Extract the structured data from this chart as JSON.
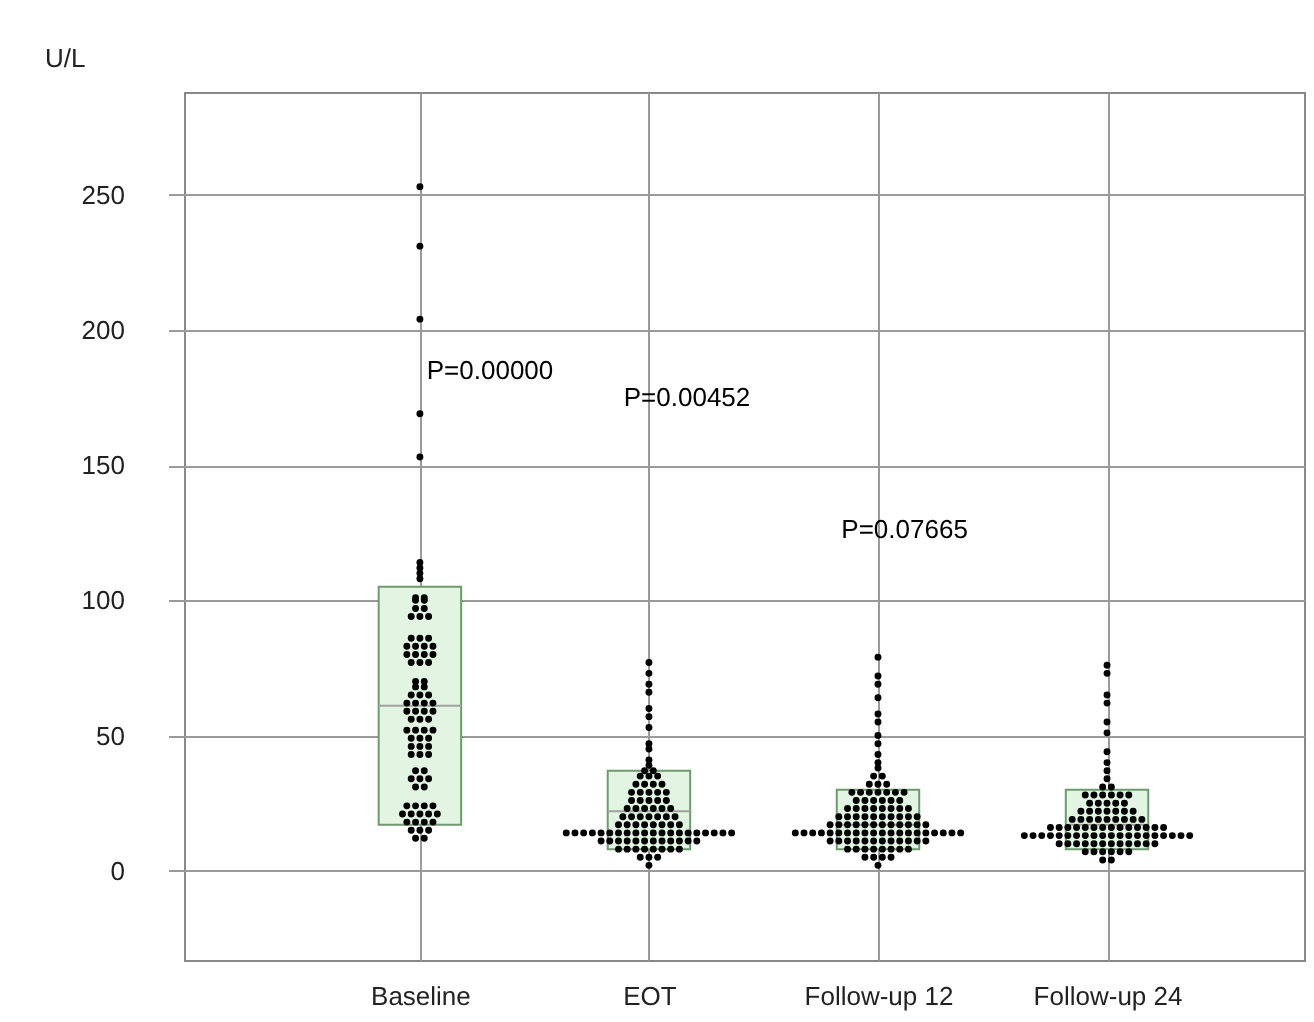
{
  "chart_data": {
    "type": "box",
    "ylabel": "U/L",
    "categories": [
      "Baseline",
      "EOT",
      "Follow-up 12",
      "Follow-up 24"
    ],
    "ylim": [
      -33,
      288
    ],
    "yticks": [
      0,
      50,
      100,
      150,
      200,
      250
    ],
    "grid": true,
    "annotations": [
      "P=0.00000",
      "P=0.00452",
      "P=0.07665"
    ],
    "series": [
      {
        "color": "#e2f5e2",
        "boxes": [
          {
            "low": 17,
            "q1": 17,
            "median": 61,
            "q3": 105,
            "high": 105
          },
          {
            "low": 8,
            "q1": 8,
            "median": 22,
            "q3": 37,
            "high": 37
          },
          {
            "low": 8,
            "q1": 8,
            "median": 17,
            "q3": 30,
            "high": 30
          },
          {
            "low": 8,
            "q1": 8,
            "median": 17,
            "q3": 30,
            "high": 30
          }
        ]
      },
      {
        "type": "scatter",
        "color": "#000000",
        "marker": "circle",
        "x": [
          "Baseline",
          "Baseline",
          "Baseline",
          "Baseline",
          "Baseline",
          "Baseline",
          "Baseline",
          "Baseline",
          "Baseline",
          "Baseline",
          "Baseline",
          "Baseline",
          "Baseline",
          "Baseline",
          "Baseline",
          "Baseline",
          "Baseline",
          "Baseline",
          "Baseline",
          "Baseline",
          "Baseline",
          "Baseline",
          "Baseline",
          "Baseline",
          "Baseline",
          "Baseline",
          "Baseline",
          "Baseline",
          "Baseline",
          "Baseline",
          "Baseline",
          "Baseline",
          "Baseline",
          "Baseline",
          "Baseline",
          "Baseline",
          "Baseline",
          "Baseline",
          "Baseline",
          "Baseline",
          "Baseline",
          "Baseline",
          "Baseline",
          "Baseline",
          "Baseline",
          "Baseline",
          "Baseline",
          "Baseline",
          "Baseline",
          "Baseline",
          "Baseline",
          "Baseline",
          "Baseline",
          "Baseline",
          "Baseline",
          "Baseline",
          "Baseline",
          "Baseline",
          "Baseline",
          "Baseline",
          "Baseline",
          "Baseline",
          "Baseline",
          "Baseline",
          "Baseline",
          "Baseline",
          "Baseline",
          "Baseline",
          "Baseline",
          "Baseline",
          "Baseline",
          "Baseline",
          "Baseline",
          "Baseline",
          "Baseline",
          "Baseline",
          "Baseline",
          "Baseline",
          "Baseline",
          "Baseline",
          "Baseline",
          "Baseline",
          "Baseline",
          "Baseline",
          "Baseline",
          "Baseline",
          "Baseline",
          "Baseline"
        ],
        "values": [
          253,
          231,
          204,
          169,
          153,
          114,
          112,
          110,
          108,
          101,
          101,
          100,
          100,
          97,
          97,
          94,
          94,
          94,
          86,
          86,
          86,
          83,
          83,
          83,
          83,
          80,
          80,
          80,
          80,
          77,
          77,
          77,
          70,
          70,
          68,
          68,
          65,
          65,
          65,
          62,
          62,
          62,
          62,
          59,
          59,
          59,
          59,
          56,
          56,
          56,
          52,
          52,
          52,
          52,
          49,
          49,
          49,
          46,
          46,
          46,
          43,
          43,
          43,
          37,
          37,
          34,
          34,
          34,
          31,
          31,
          24,
          24,
          24,
          24,
          21,
          21,
          21,
          21,
          21,
          18,
          18,
          18,
          18,
          15,
          15,
          15,
          12,
          12
        ]
      },
      {
        "type": "scatter",
        "color": "#000000",
        "marker": "circle",
        "x": [
          "EOT",
          "EOT",
          "EOT",
          "EOT",
          "EOT",
          "EOT",
          "EOT",
          "EOT",
          "EOT",
          "EOT",
          "EOT",
          "EOT",
          "EOT",
          "EOT",
          "EOT",
          "EOT",
          "EOT",
          "EOT",
          "EOT",
          "EOT",
          "EOT",
          "EOT",
          "EOT",
          "EOT",
          "EOT",
          "EOT",
          "EOT",
          "EOT",
          "EOT",
          "EOT",
          "EOT",
          "EOT",
          "EOT",
          "EOT",
          "EOT",
          "EOT",
          "EOT",
          "EOT",
          "EOT",
          "EOT",
          "EOT",
          "EOT",
          "EOT",
          "EOT",
          "EOT",
          "EOT",
          "EOT",
          "EOT",
          "EOT",
          "EOT",
          "EOT",
          "EOT",
          "EOT",
          "EOT",
          "EOT",
          "EOT",
          "EOT",
          "EOT",
          "EOT",
          "EOT",
          "EOT",
          "EOT",
          "EOT",
          "EOT",
          "EOT",
          "EOT",
          "EOT",
          "EOT",
          "EOT",
          "EOT",
          "EOT",
          "EOT",
          "EOT",
          "EOT",
          "EOT",
          "EOT",
          "EOT",
          "EOT",
          "EOT",
          "EOT",
          "EOT",
          "EOT",
          "EOT",
          "EOT",
          "EOT",
          "EOT",
          "EOT",
          "EOT",
          "EOT",
          "EOT",
          "EOT",
          "EOT",
          "EOT",
          "EOT",
          "EOT"
        ],
        "values": [
          77,
          73,
          69,
          66,
          60,
          57,
          53,
          47,
          45,
          41,
          39,
          37,
          37,
          35,
          35,
          35,
          32,
          32,
          32,
          32,
          29,
          29,
          29,
          29,
          29,
          26,
          26,
          26,
          26,
          26,
          23,
          23,
          23,
          23,
          23,
          23,
          20,
          20,
          20,
          20,
          20,
          20,
          20,
          17,
          17,
          17,
          17,
          17,
          17,
          17,
          17,
          14,
          14,
          14,
          14,
          14,
          14,
          14,
          14,
          14,
          14,
          14,
          14,
          14,
          14,
          14,
          14,
          14,
          14,
          14,
          14,
          11,
          11,
          11,
          11,
          11,
          11,
          11,
          11,
          11,
          11,
          11,
          11,
          8,
          8,
          8,
          8,
          8,
          8,
          8,
          8,
          5,
          5,
          5,
          2
        ]
      },
      {
        "type": "scatter",
        "color": "#000000",
        "marker": "circle",
        "x": [
          "Follow-up 12",
          "Follow-up 12",
          "Follow-up 12",
          "Follow-up 12",
          "Follow-up 12",
          "Follow-up 12",
          "Follow-up 12",
          "Follow-up 12",
          "Follow-up 12",
          "Follow-up 12",
          "Follow-up 12",
          "Follow-up 12",
          "Follow-up 12",
          "Follow-up 12",
          "Follow-up 12",
          "Follow-up 12",
          "Follow-up 12",
          "Follow-up 12",
          "Follow-up 12",
          "Follow-up 12",
          "Follow-up 12",
          "Follow-up 12",
          "Follow-up 12",
          "Follow-up 12",
          "Follow-up 12",
          "Follow-up 12",
          "Follow-up 12",
          "Follow-up 12",
          "Follow-up 12",
          "Follow-up 12",
          "Follow-up 12",
          "Follow-up 12",
          "Follow-up 12",
          "Follow-up 12",
          "Follow-up 12",
          "Follow-up 12",
          "Follow-up 12",
          "Follow-up 12",
          "Follow-up 12",
          "Follow-up 12",
          "Follow-up 12",
          "Follow-up 12",
          "Follow-up 12",
          "Follow-up 12",
          "Follow-up 12",
          "Follow-up 12",
          "Follow-up 12",
          "Follow-up 12",
          "Follow-up 12",
          "Follow-up 12",
          "Follow-up 12",
          "Follow-up 12",
          "Follow-up 12",
          "Follow-up 12",
          "Follow-up 12",
          "Follow-up 12",
          "Follow-up 12",
          "Follow-up 12",
          "Follow-up 12",
          "Follow-up 12",
          "Follow-up 12",
          "Follow-up 12",
          "Follow-up 12",
          "Follow-up 12",
          "Follow-up 12",
          "Follow-up 12",
          "Follow-up 12",
          "Follow-up 12",
          "Follow-up 12",
          "Follow-up 12",
          "Follow-up 12",
          "Follow-up 12",
          "Follow-up 12",
          "Follow-up 12",
          "Follow-up 12",
          "Follow-up 12",
          "Follow-up 12",
          "Follow-up 12",
          "Follow-up 12",
          "Follow-up 12",
          "Follow-up 12",
          "Follow-up 12",
          "Follow-up 12",
          "Follow-up 12",
          "Follow-up 12",
          "Follow-up 12",
          "Follow-up 12",
          "Follow-up 12",
          "Follow-up 12",
          "Follow-up 12",
          "Follow-up 12",
          "Follow-up 12",
          "Follow-up 12",
          "Follow-up 12",
          "Follow-up 12",
          "Follow-up 12",
          "Follow-up 12",
          "Follow-up 12",
          "Follow-up 12",
          "Follow-up 12",
          "Follow-up 12",
          "Follow-up 12",
          "Follow-up 12",
          "Follow-up 12"
        ],
        "values": [
          79,
          72,
          69,
          64,
          58,
          55,
          50,
          47,
          43,
          40,
          38,
          35,
          35,
          32,
          32,
          32,
          29,
          29,
          29,
          29,
          29,
          29,
          29,
          26,
          26,
          26,
          26,
          26,
          26,
          23,
          23,
          23,
          23,
          23,
          23,
          23,
          23,
          20,
          20,
          20,
          20,
          20,
          20,
          20,
          20,
          20,
          20,
          17,
          17,
          17,
          17,
          17,
          17,
          17,
          17,
          17,
          17,
          17,
          17,
          14,
          14,
          14,
          14,
          14,
          14,
          14,
          14,
          14,
          14,
          14,
          14,
          14,
          14,
          14,
          14,
          14,
          14,
          14,
          14,
          11,
          11,
          11,
          11,
          11,
          11,
          11,
          11,
          11,
          11,
          11,
          11,
          8,
          8,
          8,
          8,
          8,
          8,
          8,
          8,
          5,
          5,
          5,
          5,
          2
        ]
      },
      {
        "type": "scatter",
        "color": "#000000",
        "marker": "circle",
        "x": [
          "Follow-up 24",
          "Follow-up 24",
          "Follow-up 24",
          "Follow-up 24",
          "Follow-up 24",
          "Follow-up 24",
          "Follow-up 24",
          "Follow-up 24",
          "Follow-up 24",
          "Follow-up 24",
          "Follow-up 24",
          "Follow-up 24",
          "Follow-up 24",
          "Follow-up 24",
          "Follow-up 24",
          "Follow-up 24",
          "Follow-up 24",
          "Follow-up 24",
          "Follow-up 24",
          "Follow-up 24",
          "Follow-up 24",
          "Follow-up 24",
          "Follow-up 24",
          "Follow-up 24",
          "Follow-up 24",
          "Follow-up 24",
          "Follow-up 24",
          "Follow-up 24",
          "Follow-up 24",
          "Follow-up 24",
          "Follow-up 24",
          "Follow-up 24",
          "Follow-up 24",
          "Follow-up 24",
          "Follow-up 24",
          "Follow-up 24",
          "Follow-up 24",
          "Follow-up 24",
          "Follow-up 24",
          "Follow-up 24",
          "Follow-up 24",
          "Follow-up 24",
          "Follow-up 24",
          "Follow-up 24",
          "Follow-up 24",
          "Follow-up 24",
          "Follow-up 24",
          "Follow-up 24",
          "Follow-up 24",
          "Follow-up 24",
          "Follow-up 24",
          "Follow-up 24",
          "Follow-up 24",
          "Follow-up 24",
          "Follow-up 24",
          "Follow-up 24",
          "Follow-up 24",
          "Follow-up 24",
          "Follow-up 24",
          "Follow-up 24",
          "Follow-up 24",
          "Follow-up 24",
          "Follow-up 24",
          "Follow-up 24",
          "Follow-up 24",
          "Follow-up 24",
          "Follow-up 24",
          "Follow-up 24",
          "Follow-up 24",
          "Follow-up 24",
          "Follow-up 24",
          "Follow-up 24",
          "Follow-up 24",
          "Follow-up 24",
          "Follow-up 24",
          "Follow-up 24",
          "Follow-up 24",
          "Follow-up 24",
          "Follow-up 24",
          "Follow-up 24",
          "Follow-up 24",
          "Follow-up 24",
          "Follow-up 24",
          "Follow-up 24",
          "Follow-up 24",
          "Follow-up 24",
          "Follow-up 24",
          "Follow-up 24",
          "Follow-up 24",
          "Follow-up 24",
          "Follow-up 24",
          "Follow-up 24",
          "Follow-up 24"
        ],
        "values": [
          76,
          73,
          65,
          62,
          55,
          51,
          44,
          40,
          37,
          34,
          31,
          31,
          28,
          28,
          28,
          28,
          28,
          28,
          25,
          25,
          25,
          25,
          25,
          22,
          22,
          22,
          22,
          22,
          22,
          22,
          19,
          19,
          19,
          19,
          19,
          19,
          19,
          19,
          19,
          16,
          16,
          16,
          16,
          16,
          16,
          16,
          16,
          16,
          16,
          16,
          16,
          16,
          16,
          13,
          13,
          13,
          13,
          13,
          13,
          13,
          13,
          13,
          13,
          13,
          13,
          13,
          13,
          13,
          13,
          13,
          13,
          13,
          13,
          10,
          10,
          10,
          10,
          10,
          10,
          10,
          10,
          10,
          10,
          10,
          10,
          7,
          7,
          7,
          7,
          7,
          7,
          4,
          4
        ]
      }
    ]
  }
}
